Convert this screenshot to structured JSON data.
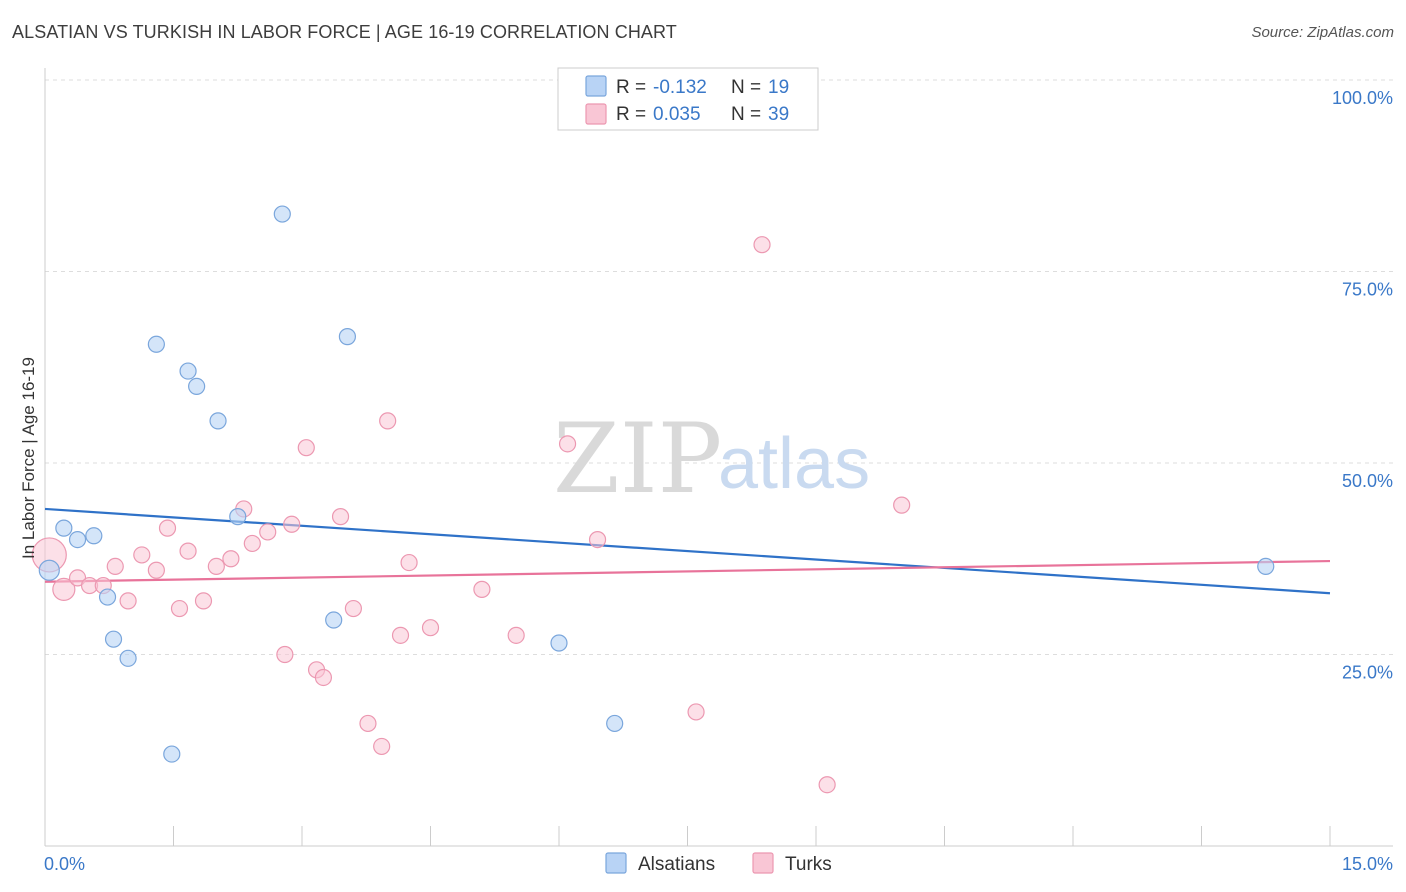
{
  "title": "ALSATIAN VS TURKISH IN LABOR FORCE | AGE 16-19 CORRELATION CHART",
  "source": "Source: ZipAtlas.com",
  "watermark": {
    "zip": "ZIP",
    "atlas": "atlas"
  },
  "colors": {
    "alsatians_fill": "#b8d3f5",
    "alsatians_stroke": "#7aa6dc",
    "alsatians_line": "#2f72c8",
    "turks_fill": "#f9c6d5",
    "turks_stroke": "#ec98b1",
    "turks_line": "#e8739a",
    "grid": "#dddddd",
    "axis": "#cccccc"
  },
  "legend": {
    "rows": [
      {
        "r_label": "R =",
        "r_value": "-0.132",
        "n_label": "N =",
        "n_value": "19"
      },
      {
        "r_label": "R =",
        "r_value": "0.035",
        "n_label": "N =",
        "n_value": "39"
      }
    ]
  },
  "chart_data": {
    "type": "scatter",
    "title": "ALSATIAN VS TURKISH IN LABOR FORCE | AGE 16-19 CORRELATION CHART",
    "xlabel": "",
    "ylabel": "In Labor Force | Age 16-19",
    "xlim": [
      0,
      15
    ],
    "ylim": [
      0,
      100
    ],
    "x_tick_labels": [
      "0.0%",
      "15.0%"
    ],
    "y_ticks": [
      25,
      50,
      75,
      100
    ],
    "y_tick_labels": [
      "25.0%",
      "50.0%",
      "75.0%",
      "100.0%"
    ],
    "series": [
      {
        "name": "Alsatians",
        "points": [
          [
            0.05,
            36.0
          ],
          [
            0.22,
            41.5
          ],
          [
            0.38,
            40.0
          ],
          [
            0.57,
            40.5
          ],
          [
            0.73,
            32.5
          ],
          [
            0.8,
            27.0
          ],
          [
            0.97,
            24.5
          ],
          [
            1.3,
            65.5
          ],
          [
            1.48,
            12.0
          ],
          [
            1.67,
            62.0
          ],
          [
            1.77,
            60.0
          ],
          [
            2.02,
            55.5
          ],
          [
            2.25,
            43.0
          ],
          [
            2.77,
            82.5
          ],
          [
            3.37,
            29.5
          ],
          [
            3.53,
            66.5
          ],
          [
            6.0,
            26.5
          ],
          [
            6.65,
            16.0
          ],
          [
            14.25,
            36.5
          ]
        ],
        "trend": {
          "x": [
            0,
            15
          ],
          "y": [
            44.0,
            33.0
          ]
        }
      },
      {
        "name": "Turks",
        "points": [
          [
            0.05,
            38.0
          ],
          [
            0.22,
            33.5
          ],
          [
            0.38,
            35.0
          ],
          [
            0.52,
            34.0
          ],
          [
            0.68,
            34.0
          ],
          [
            0.82,
            36.5
          ],
          [
            0.97,
            32.0
          ],
          [
            1.13,
            38.0
          ],
          [
            1.3,
            36.0
          ],
          [
            1.43,
            41.5
          ],
          [
            1.57,
            31.0
          ],
          [
            1.67,
            38.5
          ],
          [
            1.85,
            32.0
          ],
          [
            2.0,
            36.5
          ],
          [
            2.17,
            37.5
          ],
          [
            2.32,
            44.0
          ],
          [
            2.42,
            39.5
          ],
          [
            2.6,
            41.0
          ],
          [
            2.8,
            25.0
          ],
          [
            2.88,
            42.0
          ],
          [
            3.05,
            52.0
          ],
          [
            3.17,
            23.0
          ],
          [
            3.25,
            22.0
          ],
          [
            3.45,
            43.0
          ],
          [
            3.6,
            31.0
          ],
          [
            3.77,
            16.0
          ],
          [
            3.93,
            13.0
          ],
          [
            4.0,
            55.5
          ],
          [
            4.15,
            27.5
          ],
          [
            4.25,
            37.0
          ],
          [
            4.5,
            28.5
          ],
          [
            5.1,
            33.5
          ],
          [
            5.5,
            27.5
          ],
          [
            6.1,
            52.5
          ],
          [
            6.45,
            40.0
          ],
          [
            7.6,
            17.5
          ],
          [
            8.37,
            78.5
          ],
          [
            9.13,
            8.0
          ],
          [
            10.0,
            44.5
          ]
        ],
        "trend": {
          "x": [
            0,
            15
          ],
          "y": [
            34.5,
            37.2
          ]
        }
      }
    ]
  },
  "bottom_legend": [
    {
      "label": "Alsatians"
    },
    {
      "label": "Turks"
    }
  ]
}
